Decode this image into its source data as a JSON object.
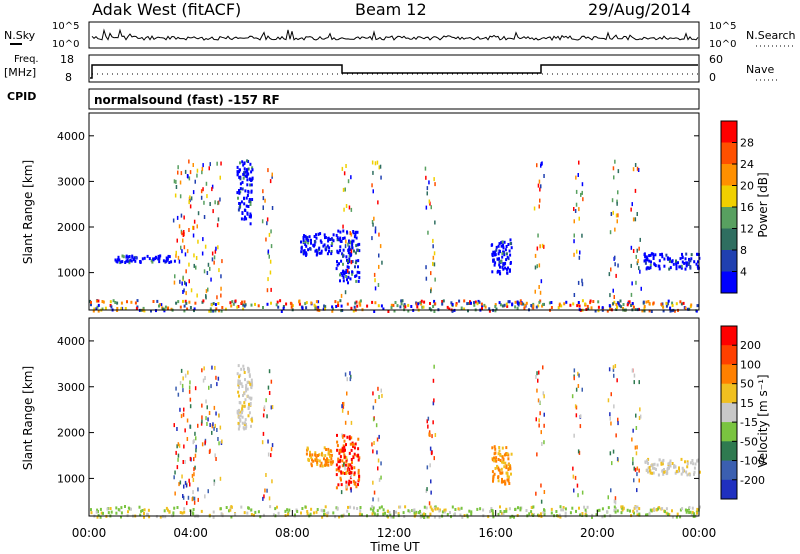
{
  "header": {
    "title": "Adak West (fitACF)",
    "beam": "Beam 12",
    "date": "29/Aug/2014"
  },
  "strip_labels": {
    "nsky": "N.Sky",
    "nsearch": "N.Search",
    "freq": "Freq.",
    "freq_unit": "[MHz]",
    "nave": "Nave",
    "cpid": "CPID",
    "cpid_text": "normalsound (fast) -157 RF",
    "ticks_left_top": [
      "10^5",
      "10^0"
    ],
    "ticks_right_top": [
      "10^5",
      "10^0"
    ],
    "ticks_left_freq": [
      "18",
      "8"
    ],
    "ticks_right_freq": [
      "60",
      "0"
    ]
  },
  "chart_data": [
    {
      "type": "heatmap",
      "panel": "power",
      "ylabel": "Slant Range [km]",
      "ylim": [
        180,
        4500
      ],
      "yticks": [
        "1000",
        "2000",
        "3000",
        "4000"
      ],
      "xlim": [
        "00:00",
        "24:00"
      ],
      "colorbar_label": "Power [dB]",
      "colorbar_ticks": [
        "4",
        "8",
        "12",
        "16",
        "20",
        "24",
        "28"
      ],
      "colors": [
        "#0000ff",
        "#2040b0",
        "#2f6e60",
        "#58a060",
        "#f0d000",
        "#ff9000",
        "#ff5000",
        "#ff0000"
      ],
      "regions": [
        {
          "t0": 0.0,
          "t1": 24.0,
          "r0": 180,
          "r1": 420,
          "color": "mixed"
        },
        {
          "t0": 1.0,
          "t1": 3.4,
          "r0": 1250,
          "r1": 1400,
          "color": "blue"
        },
        {
          "t0": 5.8,
          "t1": 6.4,
          "r0": 2100,
          "r1": 3500,
          "color": "blue"
        },
        {
          "t0": 8.3,
          "t1": 9.6,
          "r0": 1400,
          "r1": 1900,
          "color": "blue"
        },
        {
          "t0": 9.7,
          "t1": 10.6,
          "r0": 800,
          "r1": 1950,
          "color": "blue"
        },
        {
          "t0": 15.8,
          "t1": 16.6,
          "r0": 1000,
          "r1": 1750,
          "color": "blue"
        },
        {
          "t0": 21.8,
          "t1": 24.0,
          "r0": 1100,
          "r1": 1450,
          "color": "blue"
        }
      ]
    },
    {
      "type": "heatmap",
      "panel": "velocity",
      "ylabel": "Slant Range [km]",
      "ylim": [
        180,
        4500
      ],
      "yticks": [
        "1000",
        "2000",
        "3000",
        "4000"
      ],
      "xlabel": "Time UT",
      "xticks": [
        "00:00",
        "04:00",
        "08:00",
        "12:00",
        "16:00",
        "20:00",
        "00:00"
      ],
      "colorbar_label": "Velocity [m s⁻¹]",
      "colorbar_ticks": [
        "200",
        "100",
        "50",
        "15",
        "-15",
        "-50",
        "-100",
        "-200"
      ],
      "colors": [
        "#2030c0",
        "#3b5fb0",
        "#2f7a50",
        "#7ac440",
        "#c8c8c8",
        "#f0c020",
        "#ff8000",
        "#ff4000",
        "#ff0000"
      ],
      "regions": [
        {
          "t0": 0.0,
          "t1": 24.0,
          "r0": 180,
          "r1": 420,
          "color": "green/orange"
        },
        {
          "t0": 5.8,
          "t1": 6.4,
          "r0": 2100,
          "r1": 3500,
          "color": "grey"
        },
        {
          "t0": 8.5,
          "t1": 9.6,
          "r0": 1300,
          "r1": 1700,
          "color": "orange"
        },
        {
          "t0": 9.7,
          "t1": 10.6,
          "r0": 800,
          "r1": 2000,
          "color": "red"
        },
        {
          "t0": 15.8,
          "t1": 16.6,
          "r0": 900,
          "r1": 1750,
          "color": "orange"
        },
        {
          "t0": 21.8,
          "t1": 24.0,
          "r0": 1100,
          "r1": 1450,
          "color": "grey"
        }
      ]
    }
  ]
}
